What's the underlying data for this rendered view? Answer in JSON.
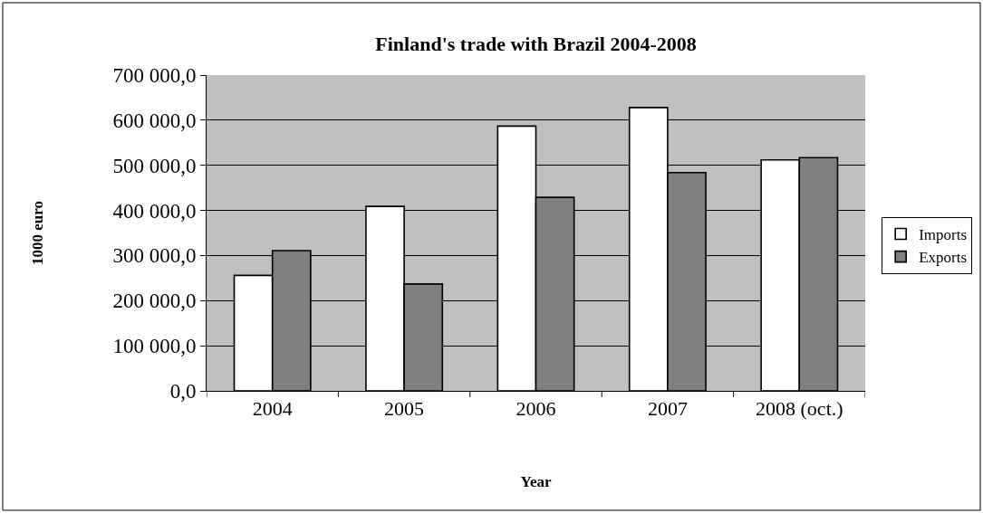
{
  "chart_data": {
    "type": "bar",
    "title": "Finland's trade with Brazil 2004-2008",
    "xlabel": "Year",
    "ylabel": "1000 euro",
    "categories": [
      "2004",
      "2005",
      "2006",
      "2007",
      "2008 (oct.)"
    ],
    "series": [
      {
        "name": "Imports",
        "color": "#ffffff",
        "values": [
          256000,
          409000,
          587000,
          628000,
          512000
        ]
      },
      {
        "name": "Exports",
        "color": "#808080",
        "values": [
          311000,
          237000,
          429000,
          484000,
          517000
        ]
      }
    ],
    "ylim": [
      0,
      700000
    ],
    "yticks": [
      {
        "value": 0,
        "label": "0,0"
      },
      {
        "value": 100000,
        "label": "100 000,0"
      },
      {
        "value": 200000,
        "label": "200 000,0"
      },
      {
        "value": 300000,
        "label": "300 000,0"
      },
      {
        "value": 400000,
        "label": "400 000,0"
      },
      {
        "value": 500000,
        "label": "500 000,0"
      },
      {
        "value": 600000,
        "label": "600 000,0"
      },
      {
        "value": 700000,
        "label": "700 000,0"
      }
    ],
    "grid": "y",
    "legend": "right"
  }
}
